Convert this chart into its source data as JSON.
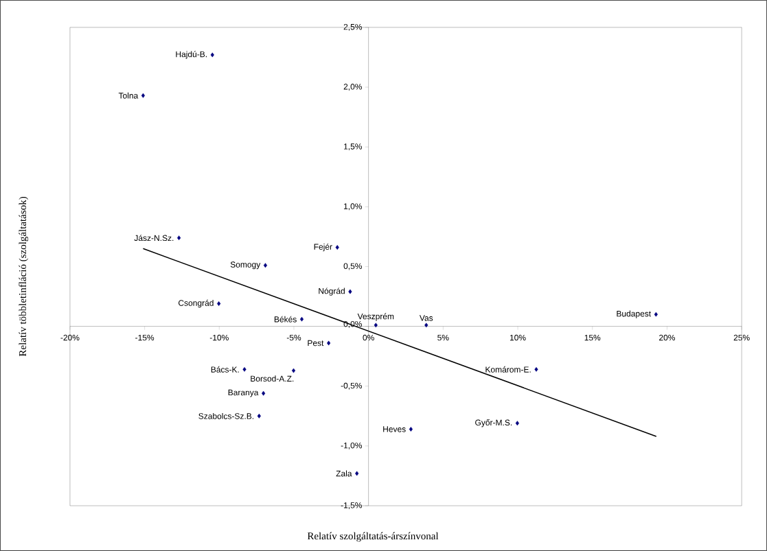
{
  "chart_data": {
    "type": "scatter",
    "xlabel": "Relatív szolgáltatás-árszínvonal",
    "ylabel": "Relatív többletinfláció (szolgáltatások)",
    "series": [
      {
        "color": "#000080",
        "x": [
          -10.46,
          -15.1,
          -12.7,
          -2.09,
          -6.91,
          -1.23,
          -10.03,
          -4.47,
          0.49,
          3.87,
          -2.67,
          -8.31,
          -5.02,
          11.24,
          -7.04,
          -7.33,
          2.84,
          9.97,
          -0.78,
          19.26
        ],
        "values": [
          2.27,
          1.93,
          0.74,
          0.66,
          0.51,
          0.29,
          0.19,
          0.06,
          0.01,
          0.01,
          -0.14,
          -0.36,
          -0.37,
          -0.36,
          -0.56,
          -0.75,
          -0.86,
          -0.81,
          -1.23,
          0.1
        ]
      },
      {
        "type": "line",
        "marker": "none",
        "color": "#000000",
        "x": [
          -15.1,
          19.28
        ],
        "values": [
          0.65,
          -0.92
        ]
      }
    ],
    "annotations": [
      {
        "text": "Hajdú-B.",
        "x": -10.46,
        "y": 2.27
      },
      {
        "text": "Tolna",
        "x": -15.1,
        "y": 1.93
      },
      {
        "text": "Jász-N.Sz.",
        "x": -12.7,
        "y": 0.74
      },
      {
        "text": "Fejér",
        "x": -2.09,
        "y": 0.66
      },
      {
        "text": "Somogy",
        "x": -6.91,
        "y": 0.51
      },
      {
        "text": "Nógrád",
        "x": -1.23,
        "y": 0.29
      },
      {
        "text": "Csongrád",
        "x": -10.03,
        "y": 0.19
      },
      {
        "text": "Békés",
        "x": -4.47,
        "y": 0.06
      },
      {
        "text": "Veszprém",
        "x": 0.49,
        "y": 0.01
      },
      {
        "text": "Vas",
        "x": 3.87,
        "y": 0.01
      },
      {
        "text": "Pest",
        "x": -2.67,
        "y": -0.14
      },
      {
        "text": "Bács-K.",
        "x": -8.31,
        "y": -0.36
      },
      {
        "text": "Borsod-A.Z.",
        "x": -5.02,
        "y": -0.37
      },
      {
        "text": "Komárom-E.",
        "x": 11.24,
        "y": -0.36
      },
      {
        "text": "Baranya",
        "x": -7.04,
        "y": -0.56
      },
      {
        "text": "Szabolcs-Sz.B.",
        "x": -7.33,
        "y": -0.75
      },
      {
        "text": "Heves",
        "x": 2.84,
        "y": -0.86
      },
      {
        "text": "Győr-M.S.",
        "x": 9.97,
        "y": -0.81
      },
      {
        "text": "Zala",
        "x": -0.78,
        "y": -1.23
      },
      {
        "text": "Budapest",
        "x": 19.26,
        "y": 0.1
      }
    ],
    "xlim": [
      -20,
      25
    ],
    "ylim": [
      -1.5,
      2.5
    ],
    "xticks": [
      {
        "value": -20,
        "label": "-20%"
      },
      {
        "value": -15,
        "label": "-15%"
      },
      {
        "value": -10,
        "label": "-10%"
      },
      {
        "value": -5,
        "label": "-5%"
      },
      {
        "value": 0,
        "label": "0%"
      },
      {
        "value": 5,
        "label": "5%"
      },
      {
        "value": 10,
        "label": "10%"
      },
      {
        "value": 15,
        "label": "15%"
      },
      {
        "value": 20,
        "label": "20%"
      },
      {
        "value": 25,
        "label": "25%"
      }
    ],
    "yticks": [
      {
        "value": -1.5,
        "label": "-1,5%"
      },
      {
        "value": -1.0,
        "label": "-1,0%"
      },
      {
        "value": -0.5,
        "label": "-0,5%"
      },
      {
        "value": 0.0,
        "label": "0,0%"
      },
      {
        "value": 0.5,
        "label": "0,5%"
      },
      {
        "value": 1.0,
        "label": "1,0%"
      },
      {
        "value": 1.5,
        "label": "1,5%"
      },
      {
        "value": 2.0,
        "label": "2,0%"
      },
      {
        "value": 2.5,
        "label": "2,5%"
      }
    ],
    "grid": false,
    "marker": "diamond"
  }
}
